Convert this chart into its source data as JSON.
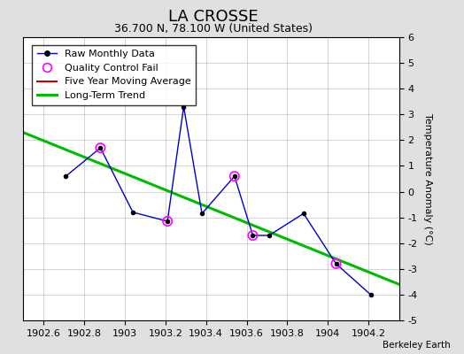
{
  "title": "LA CROSSE",
  "subtitle": "36.700 N, 78.100 W (United States)",
  "watermark": "Berkeley Earth",
  "xlim": [
    1902.5,
    1904.35
  ],
  "ylim": [
    -5,
    6
  ],
  "yticks": [
    -5,
    -4,
    -3,
    -2,
    -1,
    0,
    1,
    2,
    3,
    4,
    5,
    6
  ],
  "xticks": [
    1902.6,
    1902.8,
    1903.0,
    1903.2,
    1903.4,
    1903.6,
    1903.8,
    1904.0,
    1904.2
  ],
  "xtick_labels": [
    "1902.6",
    "1902.8",
    "1903",
    "1903.2",
    "1903.4",
    "1903.6",
    "1903.8",
    "1904",
    "1904.2"
  ],
  "ylabel": "Temperature Anomaly (°C)",
  "raw_x": [
    1902.71,
    1902.88,
    1903.04,
    1903.21,
    1903.29,
    1903.38,
    1903.54,
    1903.63,
    1903.71,
    1903.88,
    1904.04,
    1904.21
  ],
  "raw_y": [
    0.6,
    1.7,
    -0.8,
    -1.15,
    3.3,
    -0.85,
    0.6,
    -1.7,
    -1.7,
    -0.85,
    -2.8,
    -4.0
  ],
  "qc_fail_x": [
    1902.88,
    1903.21,
    1903.54,
    1903.63,
    1904.04
  ],
  "qc_fail_y": [
    1.7,
    -1.15,
    0.6,
    -1.7,
    -2.8
  ],
  "trend_x": [
    1902.5,
    1904.35
  ],
  "trend_y": [
    2.3,
    -3.6
  ],
  "bg_color": "#e0e0e0",
  "plot_bg_color": "#ffffff",
  "raw_line_color": "#0000cc",
  "raw_marker_color": "#000000",
  "qc_color": "#ff00ff",
  "trend_color": "#00bb00",
  "ma_color": "#cc0000",
  "title_fontsize": 13,
  "subtitle_fontsize": 9,
  "legend_fontsize": 8,
  "tick_fontsize": 8,
  "ylabel_fontsize": 8
}
